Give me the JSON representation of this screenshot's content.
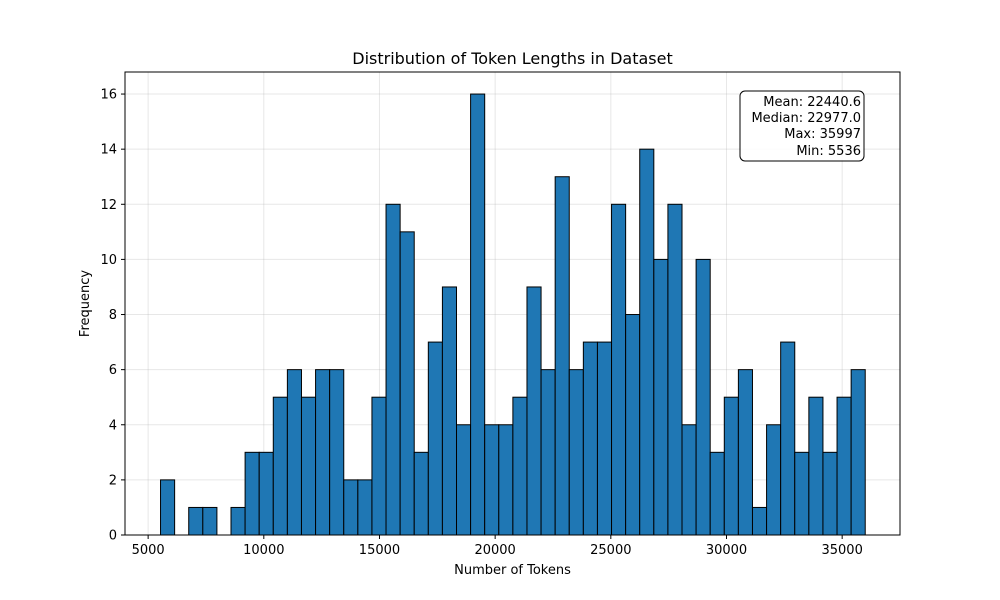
{
  "chart_data": {
    "type": "bar",
    "title": "Distribution of Token Lengths in Dataset",
    "xlabel": "Number of Tokens",
    "ylabel": "Frequency",
    "x_range": [
      5536,
      35997
    ],
    "bin_count": 50,
    "bin_values": [
      2,
      0,
      1,
      1,
      0,
      1,
      3,
      3,
      5,
      6,
      5,
      6,
      6,
      2,
      2,
      5,
      12,
      11,
      3,
      7,
      9,
      4,
      16,
      4,
      4,
      5,
      9,
      6,
      13,
      6,
      7,
      7,
      12,
      8,
      14,
      10,
      12,
      4,
      10,
      3,
      5,
      6,
      1,
      4,
      7,
      3,
      5,
      3,
      5,
      6
    ],
    "xlim": [
      4000,
      37500
    ],
    "ylim": [
      0,
      16.8
    ],
    "x_ticks": [
      5000,
      10000,
      15000,
      20000,
      25000,
      30000,
      35000
    ],
    "y_ticks": [
      0,
      2,
      4,
      6,
      8,
      10,
      12,
      14,
      16
    ],
    "grid": true,
    "bar_color": "#1f77b4",
    "edge_color": "#000000",
    "stats": {
      "mean": "Mean: 22440.6",
      "median": "Median: 22977.0",
      "max": "Max: 35997",
      "min": "Min: 5536"
    }
  }
}
